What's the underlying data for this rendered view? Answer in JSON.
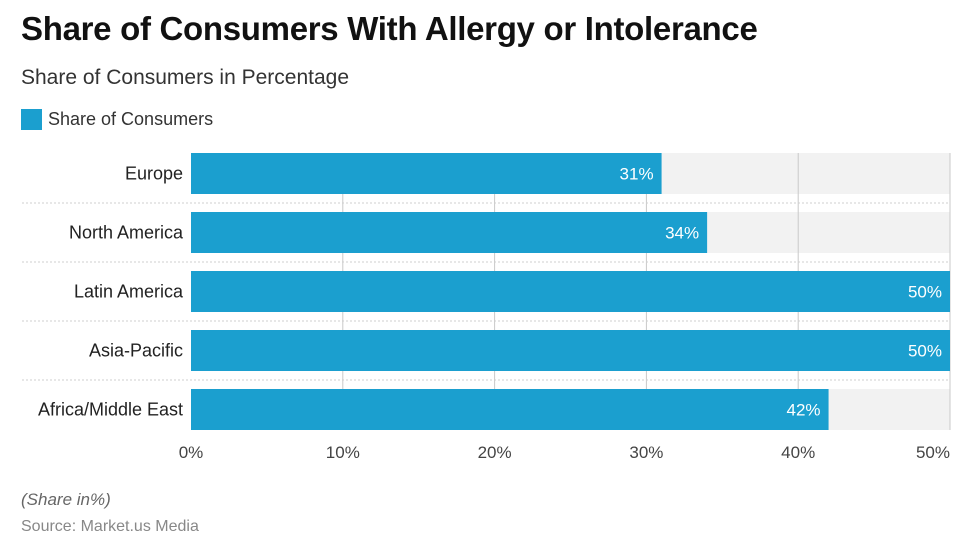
{
  "title": "Share of Consumers With Allergy or Intolerance",
  "subtitle": "Share of Consumers in Percentage",
  "note": "(Share in%)",
  "source": "Source: Market.us Media",
  "colors": {
    "bar": "#1b9fcf",
    "track": "#f2f2f2",
    "grid": "#c9c9c9",
    "separator": "#cfcfcf"
  },
  "chart_data": {
    "type": "bar",
    "orientation": "horizontal",
    "categories": [
      "Europe",
      "North America",
      "Latin America",
      "Asia-Pacific",
      "Africa/Middle East"
    ],
    "series": [
      {
        "name": "Share of Consumers",
        "values": [
          31,
          34,
          50,
          50,
          42
        ]
      }
    ],
    "data_labels": [
      "31%",
      "34%",
      "50%",
      "50%",
      "42%"
    ],
    "xlim": [
      0,
      50
    ],
    "xticks": [
      0,
      10,
      20,
      30,
      40,
      50
    ],
    "xtick_labels": [
      "0%",
      "10%",
      "20%",
      "30%",
      "40%",
      "50%"
    ],
    "grid": true,
    "legend_position": "top-left"
  }
}
